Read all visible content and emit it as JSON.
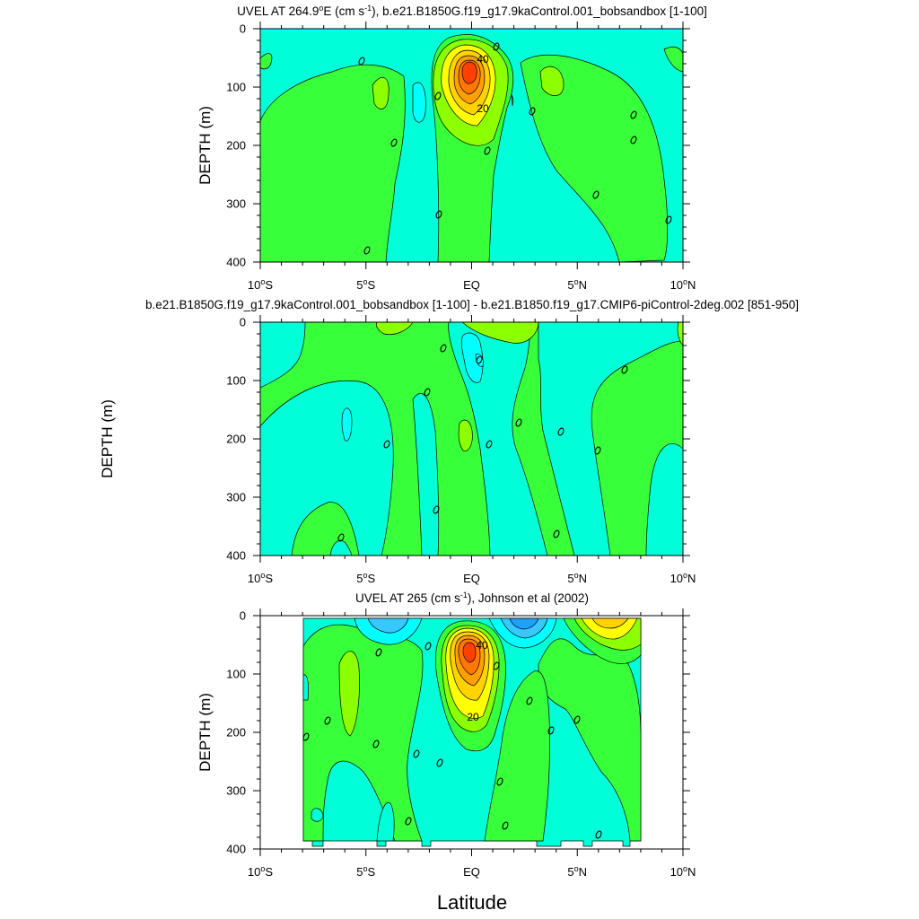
{
  "colors": {
    "cyan": "#00ffff",
    "aquamarine": "#00ffd8",
    "seagreen": "#00ff9c",
    "green": "#37ff3a",
    "lime": "#8cff00",
    "yellow": "#ffff00",
    "gold": "#ffd200",
    "orange": "#ffa000",
    "darkorange": "#ff7800",
    "red": "#ff4000",
    "skyblue": "#36c8ff",
    "blue": "#1ea0ff"
  },
  "chart_data": [
    {
      "type": "contour",
      "title": "UVEL AT 264.9°E (cm s-1), b.e21.B1850G.f19_g17.9kaControl.001_bobsandbox [1-100]",
      "title_main": "UVEL AT 264.9",
      "title_deg": "o",
      "title_e": "E (cm s",
      "title_sup": "-1",
      "title_rest": "), b.e21.B1850G.f19_g17.9kaControl.001_bobsandbox [1-100]",
      "ylabel": "DEPTH (m)",
      "xlim": [
        -10,
        10
      ],
      "ylim": [
        400,
        0
      ],
      "y_ticks": [
        "0",
        "100",
        "200",
        "300",
        "400"
      ],
      "x_ticks": [
        "10°S",
        "5°S",
        "EQ",
        "5°N",
        "10°N"
      ],
      "core": {
        "lat": -0.2,
        "depth": 75,
        "max_speed": 50
      },
      "contour_labels": [
        "0",
        "0",
        "0",
        "0",
        "0",
        "0",
        "0",
        "0",
        "0",
        "0",
        "0",
        "0",
        "40",
        "20"
      ]
    },
    {
      "type": "contour",
      "title": "b.e21.B1850G.f19_g17.9kaControl.001_bobsandbox [1-100] - b.e21.B1850.f19_g17.CMIP6-piControl-2deg.002 [851-950]",
      "ylabel": "DEPTH (m)",
      "xlim": [
        -10,
        10
      ],
      "ylim": [
        400,
        0
      ],
      "y_ticks": [
        "0",
        "100",
        "200",
        "300",
        "400"
      ],
      "x_ticks": [
        "10°S",
        "5°S",
        "EQ",
        "5°N",
        "10°N"
      ],
      "contour_labels": [
        "0",
        "0",
        "0",
        "0",
        "0",
        "0",
        "0",
        "0",
        "0",
        "0",
        "0",
        "0"
      ]
    },
    {
      "type": "contour",
      "title": "UVEL AT 265 (cm s-1), Johnson et al (2002)",
      "title_main": "UVEL AT 265 (cm s",
      "title_sup": "-1",
      "title_rest": "), Johnson et al (2002)",
      "ylabel": "DEPTH (m)",
      "xlabel": "Latitude",
      "xlim": [
        -10,
        10
      ],
      "ylim": [
        400,
        0
      ],
      "data_lat_range": [
        -8,
        8
      ],
      "y_ticks": [
        "0",
        "100",
        "200",
        "300",
        "400"
      ],
      "x_ticks": [
        "10°S",
        "5°S",
        "EQ",
        "5°N",
        "10°N"
      ],
      "core": {
        "lat": -0.2,
        "depth": 70,
        "max_speed": 50
      },
      "contour_labels": [
        "0",
        "0",
        "0",
        "0",
        "0",
        "0",
        "0",
        "0",
        "0",
        "0",
        "0",
        "0",
        "0",
        "0",
        "0",
        "40",
        "20"
      ]
    }
  ]
}
